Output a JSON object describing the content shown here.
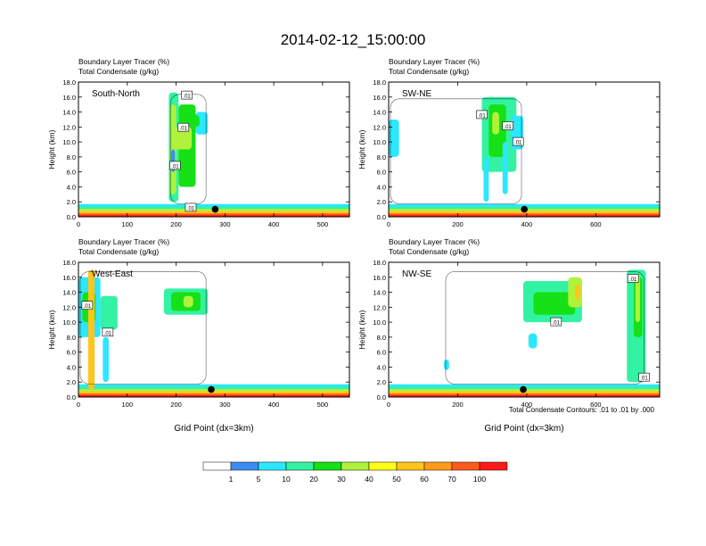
{
  "figure": {
    "title": "2014-02-12_15:00:00",
    "footnote": "Total Condensate Contours: .01 to .01 by .000"
  },
  "chart_data": [
    {
      "type": "heatmap",
      "panel_label": "South-North",
      "title_line1": "Boundary Layer Tracer    (%)",
      "title_line2": "Total Condensate    (g/kg)",
      "ylabel": "Height (km)",
      "xlabel": "",
      "xlim": [
        0,
        555
      ],
      "ylim": [
        0,
        18
      ],
      "xticks": [
        0,
        100,
        200,
        300,
        400,
        500
      ],
      "yticks": [
        "0.0",
        "2.0",
        "4.0",
        "6.0",
        "8.0",
        "10.0",
        "12.0",
        "14.0",
        "16.0",
        "18.0"
      ],
      "contour_labels": [
        {
          "text": ".01",
          "x": 222,
          "y": 16.2
        },
        {
          "text": ".01",
          "x": 215,
          "y": 11.9
        },
        {
          "text": ".01",
          "x": 198,
          "y": 6.8
        },
        {
          "text": ".01",
          "x": 230,
          "y": 1.2
        }
      ],
      "marker": {
        "x": 280,
        "y": 1.0
      }
    },
    {
      "type": "heatmap",
      "panel_label": "SW-NE",
      "title_line1": "Boundary Layer Tracer    (%)",
      "title_line2": "Total Condensate    (g/kg)",
      "ylabel": "Height (km)",
      "xlabel": "",
      "xlim": [
        0,
        785
      ],
      "ylim": [
        0,
        18
      ],
      "xticks": [
        0,
        200,
        400,
        600
      ],
      "yticks": [
        "0.0",
        "2.0",
        "4.0",
        "6.0",
        "8.0",
        "10.0",
        "12.0",
        "14.0",
        "16.0",
        "18.0"
      ],
      "contour_labels": [
        {
          "text": ".01",
          "x": 270,
          "y": 13.6
        },
        {
          "text": ".01",
          "x": 345,
          "y": 12.1
        },
        {
          "text": ".01",
          "x": 375,
          "y": 10.0
        }
      ],
      "marker": {
        "x": 393,
        "y": 1.0
      }
    },
    {
      "type": "heatmap",
      "panel_label": "West-East",
      "title_line1": "Boundary Layer Tracer    (%)",
      "title_line2": "Total Condensate    (g/kg)",
      "ylabel": "Height (km)",
      "xlabel": "Grid Point (dx=3km)",
      "xlim": [
        0,
        555
      ],
      "ylim": [
        0,
        18
      ],
      "xticks": [
        0,
        100,
        200,
        300,
        400,
        500
      ],
      "yticks": [
        "0.0",
        "2.0",
        "4.0",
        "6.0",
        "8.0",
        "10.0",
        "12.0",
        "14.0",
        "16.0",
        "18.0"
      ],
      "contour_labels": [
        {
          "text": ".01",
          "x": 18,
          "y": 12.2
        },
        {
          "text": ".01",
          "x": 60,
          "y": 8.6
        }
      ],
      "marker": {
        "x": 272,
        "y": 1.0
      }
    },
    {
      "type": "heatmap",
      "panel_label": "NW-SE",
      "title_line1": "Boundary Layer Tracer    (%)",
      "title_line2": "Total Condensate    (g/kg)",
      "ylabel": "Height (km)",
      "xlabel": "Grid Point (dx=3km)",
      "xlim": [
        0,
        785
      ],
      "ylim": [
        0,
        18
      ],
      "xticks": [
        0,
        200,
        400,
        600
      ],
      "yticks": [
        "0.0",
        "2.0",
        "4.0",
        "6.0",
        "8.0",
        "10.0",
        "12.0",
        "14.0",
        "16.0",
        "18.0"
      ],
      "contour_labels": [
        {
          "text": ".01",
          "x": 708,
          "y": 15.8
        },
        {
          "text": ".01",
          "x": 485,
          "y": 10.0
        },
        {
          "text": ".01",
          "x": 740,
          "y": 2.6
        }
      ],
      "marker": {
        "x": 390,
        "y": 1.0
      }
    }
  ],
  "colorbar": {
    "levels": [
      "1",
      "5",
      "10",
      "20",
      "30",
      "40",
      "50",
      "60",
      "70",
      "100"
    ],
    "colors": [
      "#ffffff",
      "#3b8cf2",
      "#2be7ff",
      "#33f2a3",
      "#16e016",
      "#b0f23b",
      "#ffff17",
      "#ffc51a",
      "#ff9a1a",
      "#ff5a1a",
      "#ff1a1a"
    ]
  }
}
